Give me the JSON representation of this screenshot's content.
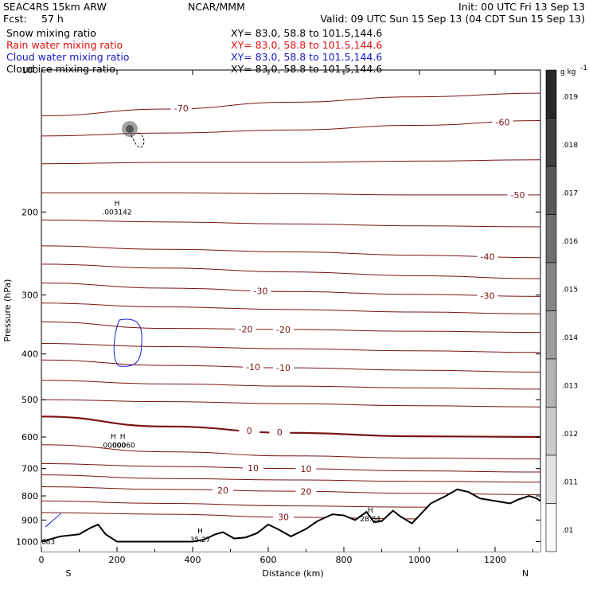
{
  "header": {
    "model": "SEAC4RS 15km ARW",
    "center": "NCAR/MMM",
    "init": "Init: 00 UTC Fri 13 Sep 13",
    "fcst_label": "Fcst:",
    "fcst_value": "57 h",
    "valid": "Valid: 09 UTC Sun 15 Sep 13 (04 CDT Sun 15 Sep 13)"
  },
  "fields": [
    {
      "name": "Snow mixing ratio",
      "xy": "XY=  83.0, 58.8 to 101.5,144.6",
      "color": "#000000"
    },
    {
      "name": "Rain water mixing ratio",
      "xy": "XY=  83.0, 58.8 to 101.5,144.6",
      "color": "#e01010"
    },
    {
      "name": "Cloud water mixing ratio",
      "xy": "XY=  83.0, 58.8 to 101.5,144.6",
      "color": "#1818c8"
    },
    {
      "name": "Cloud ice mixing ratio",
      "xy": "XY=  83.0, 58.8 to 101.5,144.6",
      "color": "#000000"
    }
  ],
  "chart_data": {
    "type": "contour-cross-section",
    "xlabel": "Distance (km)",
    "ylabel": "Pressure (hPa)",
    "xlim": [
      0,
      1320
    ],
    "ylim": [
      100,
      1050
    ],
    "y_log": true,
    "x_ticks": [
      0,
      200,
      400,
      600,
      800,
      1000,
      1200
    ],
    "y_ticks": [
      100,
      200,
      300,
      400,
      500,
      600,
      700,
      800,
      900,
      1000
    ],
    "x_end_labels": {
      "left": "S",
      "right": "N"
    },
    "colorbar": {
      "unit": "g kg",
      "unit_exp": "-1",
      "labels": [
        ".019",
        ".018",
        ".017",
        ".016",
        ".015",
        ".014",
        ".013",
        ".012",
        ".011",
        ".01"
      ]
    },
    "temperature_contours": [
      {
        "p": [
          125,
          121,
          117,
          114,
          112
        ],
        "labels": [
          {
            "x": 370,
            "text": "-70"
          }
        ]
      },
      {
        "p": [
          138,
          136,
          134,
          131,
          128
        ],
        "labels": [
          {
            "x": 1220,
            "text": "-60"
          }
        ]
      },
      {
        "p": [
          158,
          157,
          157,
          156,
          155
        ],
        "labels": []
      },
      {
        "p": [
          182,
          182,
          183,
          184,
          184
        ],
        "labels": [
          {
            "x": 1260,
            "text": "-50"
          }
        ]
      },
      {
        "p": [
          208,
          210,
          212,
          214,
          215
        ],
        "labels": []
      },
      {
        "p": [
          236,
          240,
          243,
          247,
          250
        ],
        "labels": [
          {
            "x": 1180,
            "text": "-40"
          }
        ]
      },
      {
        "p": [
          258,
          263,
          268,
          273,
          277
        ],
        "labels": []
      },
      {
        "p": [
          283,
          290,
          295,
          299,
          302
        ],
        "labels": [
          {
            "x": 580,
            "text": "-30"
          },
          {
            "x": 1180,
            "text": "-30"
          }
        ]
      },
      {
        "p": [
          312,
          318,
          322,
          326,
          329
        ],
        "labels": []
      },
      {
        "p": [
          342,
          353,
          355,
          358,
          360
        ],
        "labels": [
          {
            "x": 540,
            "text": "-20"
          },
          {
            "x": 640,
            "text": "-20"
          }
        ]
      },
      {
        "p": [
          380,
          386,
          390,
          394,
          397
        ],
        "labels": []
      },
      {
        "p": [
          412,
          423,
          428,
          433,
          437
        ],
        "labels": [
          {
            "x": 560,
            "text": "-10"
          },
          {
            "x": 640,
            "text": "-10"
          }
        ]
      },
      {
        "p": [
          455,
          463,
          468,
          472,
          475
        ],
        "labels": []
      },
      {
        "p": [
          500,
          505,
          510,
          515,
          518
        ],
        "labels": []
      },
      {
        "p": [
          543,
          570,
          588,
          598,
          600
        ],
        "labels": [
          {
            "x": 550,
            "text": "0"
          },
          {
            "x": 630,
            "text": "0"
          }
        ],
        "bold": true
      },
      {
        "p": [
          623,
          645,
          658,
          665,
          668
        ],
        "labels": []
      },
      {
        "p": [
          683,
          693,
          700,
          708,
          712
        ],
        "labels": [
          {
            "x": 560,
            "text": "10"
          },
          {
            "x": 700,
            "text": "10"
          }
        ]
      },
      {
        "p": [
          722,
          735,
          740,
          745,
          748
        ],
        "labels": []
      },
      {
        "p": [
          765,
          775,
          782,
          790,
          795
        ],
        "labels": [
          {
            "x": 480,
            "text": "20"
          },
          {
            "x": 700,
            "text": "20"
          }
        ]
      },
      {
        "p": [
          820,
          830,
          840,
          845,
          848
        ],
        "labels": []
      },
      {
        "p": [
          868,
          875,
          888,
          895,
          900
        ],
        "labels": [
          {
            "x": 640,
            "text": "30"
          }
        ]
      }
    ],
    "terrain": [
      [
        0,
        1000
      ],
      [
        50,
        975
      ],
      [
        100,
        965
      ],
      [
        130,
        935
      ],
      [
        150,
        920
      ],
      [
        170,
        965
      ],
      [
        200,
        1000
      ],
      [
        300,
        1000
      ],
      [
        400,
        1000
      ],
      [
        430,
        990
      ],
      [
        460,
        965
      ],
      [
        480,
        955
      ],
      [
        510,
        985
      ],
      [
        540,
        980
      ],
      [
        570,
        960
      ],
      [
        600,
        920
      ],
      [
        630,
        945
      ],
      [
        660,
        975
      ],
      [
        700,
        940
      ],
      [
        730,
        905
      ],
      [
        770,
        875
      ],
      [
        800,
        880
      ],
      [
        830,
        900
      ],
      [
        860,
        865
      ],
      [
        880,
        910
      ],
      [
        900,
        905
      ],
      [
        930,
        860
      ],
      [
        950,
        885
      ],
      [
        980,
        915
      ],
      [
        1000,
        880
      ],
      [
        1030,
        830
      ],
      [
        1070,
        800
      ],
      [
        1100,
        775
      ],
      [
        1130,
        785
      ],
      [
        1160,
        810
      ],
      [
        1200,
        820
      ],
      [
        1240,
        830
      ],
      [
        1260,
        815
      ],
      [
        1290,
        800
      ],
      [
        1310,
        810
      ],
      [
        1320,
        820
      ]
    ],
    "annotations": [
      {
        "x": 200,
        "p": 200,
        "mark": "H",
        "value": ".003142",
        "color": "#000000"
      },
      {
        "x": 190,
        "p": 625,
        "mark": "H",
        "value": ".00000",
        "color": "#c01010"
      },
      {
        "x": 215,
        "p": 625,
        "mark": "H",
        "value": ".00060",
        "color": "#1818c8"
      },
      {
        "x": 420,
        "p": 990,
        "mark": "H",
        "value": "35.27",
        "color": "#7a1414"
      },
      {
        "x": 870,
        "p": 895,
        "mark": "H",
        "value": "28.84",
        "color": "#7a1414"
      },
      {
        "x": 18,
        "p": 1000,
        "mark": "",
        "value": "683",
        "color": "#1818c8"
      }
    ]
  }
}
